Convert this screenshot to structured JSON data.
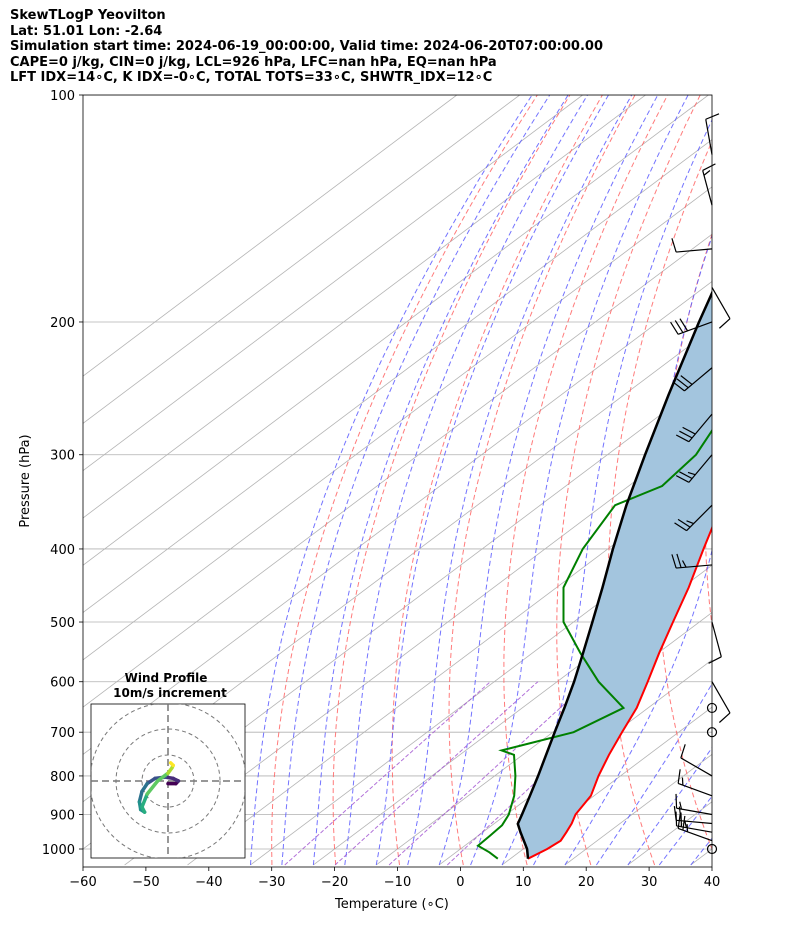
{
  "header": {
    "line1": "SkewTLogP Yeovilton",
    "line2": "Lat: 51.01   Lon: -2.64",
    "line3": "Simulation start time: 2024-06-19_00:00:00, Valid time: 2024-06-20T07:00:00.00",
    "line4": "CAPE=0 j/kg, CIN=0 j/kg, LCL=926 hPa, LFC=nan hPa, EQ=nan hPa",
    "line5": "LFT IDX=14∘C, K IDX=-0∘C, TOTAL TOTS=33∘C, SHWTR_IDX=12∘C"
  },
  "colors": {
    "temperature": "#ff0000",
    "dewpoint": "#008000",
    "parcel": "#000000",
    "shade": "#a3c5de",
    "dry_adiabat": "#ff6464",
    "moist_adiabat": "#5a5aff",
    "mixing_ratio": "#9f4fd0",
    "isotherm": "#b4b4b4"
  },
  "chart_data": {
    "type": "line",
    "skew_t": {
      "xlabel": "Temperature (∘C)",
      "ylabel": "Pressure (hPa)",
      "xlim": [
        -60,
        40
      ],
      "ylim": [
        1050,
        100
      ],
      "y_scale": "log",
      "x_ticks": [
        "−60",
        "−50",
        "−40",
        "−30",
        "−20",
        "−10",
        "0",
        "10",
        "20",
        "30",
        "40"
      ],
      "y_ticks": [
        "1000",
        "900",
        "800",
        "700",
        "600",
        "500",
        "400",
        "300",
        "200",
        "100"
      ],
      "grid": true,
      "series": [
        {
          "key": "temperature",
          "points": [
            [
              1030,
              12.8
            ],
            [
              1000,
              13.8
            ],
            [
              975,
              14.2
            ],
            [
              950,
              13.3
            ],
            [
              925,
              12.3
            ],
            [
              900,
              11.0
            ],
            [
              850,
              9.5
            ],
            [
              800,
              6.5
            ],
            [
              750,
              3.7
            ],
            [
              700,
              1.0
            ],
            [
              650,
              -1.8
            ],
            [
              600,
              -5.6
            ],
            [
              550,
              -9.8
            ],
            [
              500,
              -14.2
            ],
            [
              450,
              -19.0
            ],
            [
              400,
              -24.8
            ],
            [
              350,
              -31.2
            ],
            [
              300,
              -38.7
            ],
            [
              250,
              -46.8
            ],
            [
              220,
              -51.5
            ],
            [
              200,
              -51.3
            ],
            [
              175,
              -51.8
            ],
            [
              150,
              -54.5
            ],
            [
              125,
              -56.4
            ],
            [
              100,
              -57.8
            ]
          ]
        },
        {
          "key": "dewpoint",
          "points": [
            [
              1030,
              8.0
            ],
            [
              1010,
              5.3
            ],
            [
              990,
              2.1
            ],
            [
              960,
              1.9
            ],
            [
              930,
              1.6
            ],
            [
              900,
              0.4
            ],
            [
              850,
              -2.7
            ],
            [
              800,
              -6.7
            ],
            [
              750,
              -11.4
            ],
            [
              740,
              -14.3
            ],
            [
              700,
              -6.7
            ],
            [
              650,
              -3.9
            ],
            [
              600,
              -13.4
            ],
            [
              550,
              -22.3
            ],
            [
              500,
              -31.6
            ],
            [
              450,
              -38.9
            ],
            [
              400,
              -44.0
            ],
            [
              350,
              -48.1
            ],
            [
              330,
              -44.7
            ],
            [
              300,
              -45.9
            ],
            [
              250,
              -52.2
            ],
            [
              220,
              -57.8
            ],
            [
              200,
              -64.0
            ],
            [
              180,
              -72.0
            ],
            [
              160,
              -76.8
            ],
            [
              140,
              -77.6
            ],
            [
              100,
              -88.0
            ]
          ]
        },
        {
          "key": "parcel",
          "points": [
            [
              1030,
              12.8
            ],
            [
              1000,
              10.6
            ],
            [
              950,
              6.0
            ],
            [
              926,
              3.8
            ],
            [
              900,
              2.5
            ],
            [
              850,
              -0.2
            ],
            [
              800,
              -3.1
            ],
            [
              750,
              -6.3
            ],
            [
              700,
              -9.7
            ],
            [
              650,
              -13.3
            ],
            [
              600,
              -17.3
            ],
            [
              550,
              -21.9
            ],
            [
              500,
              -27.0
            ],
            [
              450,
              -32.7
            ],
            [
              400,
              -39.2
            ],
            [
              350,
              -46.3
            ],
            [
              300,
              -54.0
            ],
            [
              250,
              -62.9
            ],
            [
              200,
              -73.5
            ],
            [
              150,
              -86.7
            ],
            [
              100,
              -105.0
            ]
          ]
        }
      ]
    },
    "wind_barbs": {
      "units": "kt",
      "levels": [
        {
          "p": 1000,
          "speed": 0,
          "dir": 0
        },
        {
          "p": 975,
          "speed": 25,
          "dir": 290
        },
        {
          "p": 950,
          "speed": 25,
          "dir": 280
        },
        {
          "p": 925,
          "speed": 20,
          "dir": 275
        },
        {
          "p": 900,
          "speed": 15,
          "dir": 280
        },
        {
          "p": 850,
          "speed": 15,
          "dir": 290
        },
        {
          "p": 800,
          "speed": 10,
          "dir": 300
        },
        {
          "p": 700,
          "speed": 0,
          "dir": 0
        },
        {
          "p": 650,
          "speed": 0,
          "dir": 0
        },
        {
          "p": 600,
          "speed": 10,
          "dir": 150
        },
        {
          "p": 500,
          "speed": 10,
          "dir": 165
        },
        {
          "p": 420,
          "speed": 25,
          "dir": 265
        },
        {
          "p": 350,
          "speed": 25,
          "dir": 225
        },
        {
          "p": 300,
          "speed": 25,
          "dir": 220
        },
        {
          "p": 265,
          "speed": 30,
          "dir": 220
        },
        {
          "p": 230,
          "speed": 30,
          "dir": 230
        },
        {
          "p": 200,
          "speed": 30,
          "dir": 250
        },
        {
          "p": 180,
          "speed": 10,
          "dir": 150
        },
        {
          "p": 160,
          "speed": 10,
          "dir": 265
        },
        {
          "p": 140,
          "speed": 15,
          "dir": 345
        },
        {
          "p": 120,
          "speed": 10,
          "dir": 350
        }
      ]
    },
    "hodograph": {
      "title": "Wind Profile",
      "subtitle": "10m/s increment",
      "ring_interval_ms": 10,
      "max_ring_ms": 30,
      "points": [
        [
          0.0,
          -1.0
        ],
        [
          3.0,
          -1.0
        ],
        [
          4.0,
          0.0
        ],
        [
          2.0,
          1.0
        ],
        [
          -1.0,
          1.5
        ],
        [
          -5.0,
          1.0
        ],
        [
          -8.0,
          -1.0
        ],
        [
          -10.0,
          -4.0
        ],
        [
          -11.0,
          -8.0
        ],
        [
          -10.5,
          -11.0
        ],
        [
          -9.0,
          -12.0
        ],
        [
          -10.0,
          -10.0
        ],
        [
          -8.0,
          -5.0
        ],
        [
          -4.0,
          0.0
        ],
        [
          0.0,
          3.0
        ],
        [
          1.5,
          5.0
        ],
        [
          2.0,
          6.0
        ],
        [
          1.0,
          7.0
        ]
      ]
    }
  }
}
